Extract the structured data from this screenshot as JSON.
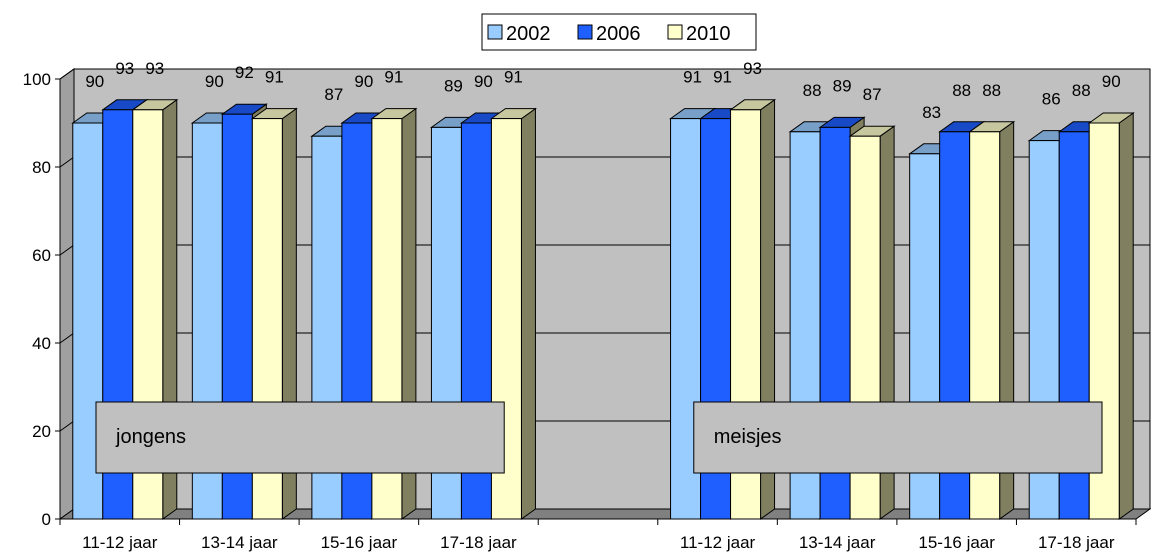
{
  "chart_data": {
    "type": "bar",
    "legend_position": "top",
    "series": [
      {
        "name": "2002",
        "color": "#99CCFF"
      },
      {
        "name": "2006",
        "color": "#1F5FFF"
      },
      {
        "name": "2010",
        "color": "#FFFFCC"
      }
    ],
    "groups": [
      {
        "label": "jongens",
        "categories": [
          {
            "label": "11-12 jaar",
            "values": [
              90,
              93,
              93
            ]
          },
          {
            "label": "13-14 jaar",
            "values": [
              90,
              92,
              91
            ]
          },
          {
            "label": "15-16 jaar",
            "values": [
              87,
              90,
              91
            ]
          },
          {
            "label": "17-18 jaar",
            "values": [
              89,
              90,
              91
            ]
          }
        ]
      },
      {
        "label": "meisjes",
        "categories": [
          {
            "label": "11-12 jaar",
            "values": [
              91,
              91,
              93
            ]
          },
          {
            "label": "13-14 jaar",
            "values": [
              88,
              89,
              87
            ]
          },
          {
            "label": "15-16 jaar",
            "values": [
              83,
              88,
              88
            ]
          },
          {
            "label": "17-18 jaar",
            "values": [
              86,
              88,
              90
            ]
          }
        ]
      }
    ],
    "y_axis": {
      "min": 0,
      "max": 100,
      "ticks": [
        "0",
        "20",
        "40",
        "60",
        "80",
        "100"
      ]
    },
    "gridlines": true,
    "wall_color": "#C0C0C0",
    "floor_color": "#808080",
    "side_color": "#808060"
  }
}
